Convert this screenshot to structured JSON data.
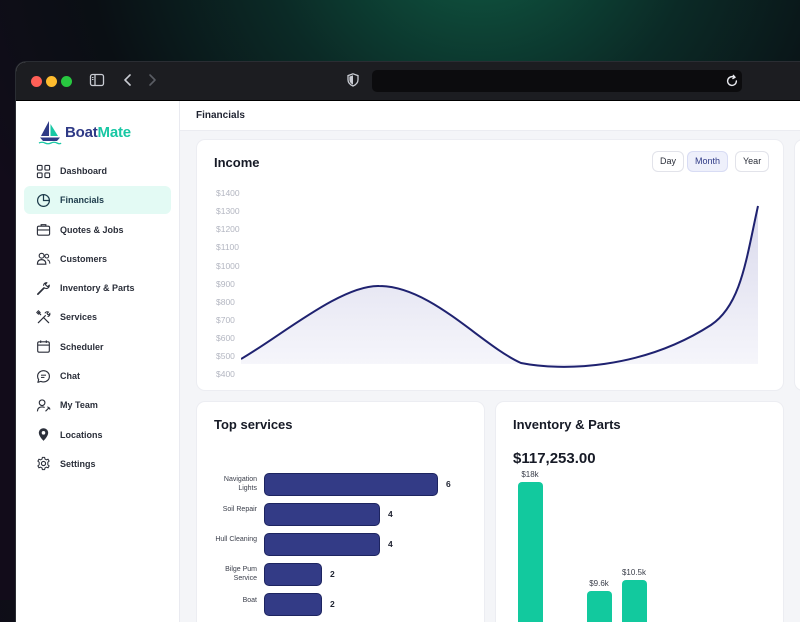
{
  "browser": {
    "icons": [
      "sidebar-toggle-icon",
      "back-icon",
      "forward-icon",
      "shield-icon",
      "reload-icon"
    ]
  },
  "app": {
    "brand_part1": "Boat",
    "brand_part2": "Mate",
    "brand_colors": {
      "primary": "#2f3a86",
      "accent": "#18c7a4"
    }
  },
  "sidebar": {
    "items": [
      {
        "label": "Dashboard",
        "icon": "grid-icon",
        "active": false
      },
      {
        "label": "Financials",
        "icon": "pie-chart-icon",
        "active": true
      },
      {
        "label": "Quotes & Jobs",
        "icon": "briefcase-icon",
        "active": false
      },
      {
        "label": "Customers",
        "icon": "users-icon",
        "active": false
      },
      {
        "label": "Inventory & Parts",
        "icon": "wrench-icon",
        "active": false
      },
      {
        "label": "Services",
        "icon": "tools-icon",
        "active": false
      },
      {
        "label": "Scheduler",
        "icon": "calendar-icon",
        "active": false
      },
      {
        "label": "Chat",
        "icon": "chat-icon",
        "active": false
      },
      {
        "label": "My Team",
        "icon": "team-icon",
        "active": false
      },
      {
        "label": "Locations",
        "icon": "location-pin-icon",
        "active": false
      },
      {
        "label": "Settings",
        "icon": "gear-icon",
        "active": false
      }
    ]
  },
  "header": {
    "breadcrumb": "Financials"
  },
  "income": {
    "title": "Income",
    "periods": [
      "Day",
      "Month",
      "Year"
    ],
    "selected_period": "Month",
    "y_ticks": [
      "$1400",
      "$1300",
      "$1200",
      "$1100",
      "$1000",
      "$900",
      "$800",
      "$700",
      "$600",
      "$500",
      "$400"
    ]
  },
  "top_services": {
    "title": "Top services",
    "items": [
      {
        "label": "Navigation Lights",
        "value": "6"
      },
      {
        "label": "Soil Repair",
        "value": "4"
      },
      {
        "label": "Hull Cleaning",
        "value": "4"
      },
      {
        "label": "Bilge Pum Service",
        "value": "2"
      },
      {
        "label": "Boat",
        "value": "2"
      }
    ]
  },
  "inventory": {
    "title": "Inventory & Parts",
    "total": "$117,253.00",
    "bars": [
      {
        "label": "$18k",
        "value": 18
      },
      {
        "label": "$9.6k",
        "value": 9.6
      },
      {
        "label": "$10.5k",
        "value": 10.5
      }
    ]
  },
  "chart_data": [
    {
      "type": "area",
      "title": "Income",
      "y_ticks": [
        "$1400",
        "$1300",
        "$1200",
        "$1100",
        "$1000",
        "$900",
        "$800",
        "$700",
        "$600",
        "$500",
        "$400"
      ],
      "ylim": [
        400,
        1400
      ],
      "series": [
        {
          "x": [
            0,
            0.05,
            0.15,
            0.27,
            0.4,
            0.5,
            0.63,
            0.75,
            0.85,
            0.92,
            0.96,
            1.0
          ],
          "y": [
            480,
            560,
            780,
            890,
            820,
            560,
            430,
            450,
            560,
            700,
            900,
            1330
          ]
        }
      ],
      "colors": {
        "line": "#1f2270",
        "fill": "#e8e8f3"
      },
      "grid": false
    },
    {
      "type": "bar",
      "title": "Top services",
      "orientation": "horizontal",
      "categories": [
        "Navigation Lights",
        "Soil Repair",
        "Hull Cleaning",
        "Bilge Pum Service",
        "Boat"
      ],
      "values": [
        6,
        4,
        4,
        2,
        2
      ],
      "colors": {
        "bar": "#333b86"
      }
    },
    {
      "type": "bar",
      "title": "Inventory & Parts",
      "categories": [
        "",
        "",
        ""
      ],
      "values": [
        18,
        9.6,
        10.5
      ],
      "data_labels": [
        "$18k",
        "$9.6k",
        "$10.5k"
      ],
      "colors": {
        "bar": "#12c99e"
      }
    }
  ]
}
